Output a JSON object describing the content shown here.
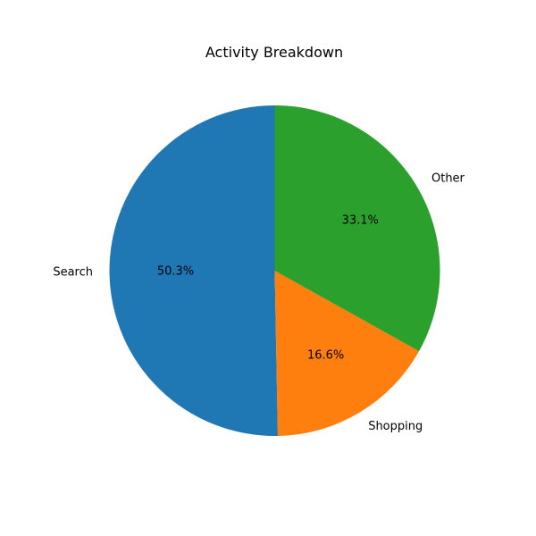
{
  "chart_data": {
    "type": "pie",
    "title": "Activity Breakdown",
    "slices": [
      {
        "label": "Search",
        "value": 50.3,
        "pct_label": "50.3%",
        "color": "#1f77b4"
      },
      {
        "label": "Shopping",
        "value": 16.6,
        "pct_label": "16.6%",
        "color": "#ff7f0e"
      },
      {
        "label": "Other",
        "value": 33.1,
        "pct_label": "33.1%",
        "color": "#2ca02c"
      }
    ],
    "start_angle_deg": 90,
    "direction": "counterclockwise"
  }
}
